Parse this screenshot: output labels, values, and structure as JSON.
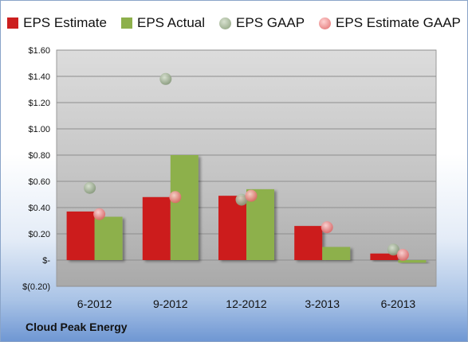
{
  "footer": {
    "company": "Cloud Peak Energy"
  },
  "colors": {
    "estimate": "#cc1f1f",
    "actual": "#8db04b",
    "gaap": "#9db08e",
    "estimate_gaap": "#ee8a8a",
    "plot_bg": "#c9c9c9",
    "gridline": "#8e8e8e"
  },
  "chart_data": {
    "type": "bar",
    "categories": [
      "6-2012",
      "9-2012",
      "12-2012",
      "3-2013",
      "6-2013"
    ],
    "series": [
      {
        "name": "EPS Estimate",
        "kind": "bar",
        "values": [
          0.37,
          0.48,
          0.49,
          0.26,
          0.05
        ]
      },
      {
        "name": "EPS Actual",
        "kind": "bar",
        "values": [
          0.33,
          0.8,
          0.54,
          0.1,
          -0.02
        ]
      },
      {
        "name": "EPS GAAP",
        "kind": "scatter",
        "values": [
          0.55,
          1.38,
          0.46,
          null,
          0.08
        ]
      },
      {
        "name": "EPS Estimate GAAP",
        "kind": "scatter",
        "values": [
          0.35,
          0.48,
          0.49,
          0.25,
          0.04
        ]
      }
    ],
    "y_ticks": [
      "$1.60",
      "$1.40",
      "$1.20",
      "$1.00",
      "$0.80",
      "$0.60",
      "$0.40",
      "$0.20",
      "$-",
      "$(0.20)"
    ],
    "y_tick_values": [
      1.6,
      1.4,
      1.2,
      1.0,
      0.8,
      0.6,
      0.4,
      0.2,
      0,
      -0.2
    ],
    "ylim": [
      -0.2,
      1.6
    ],
    "grid": true,
    "legend_position": "top"
  }
}
